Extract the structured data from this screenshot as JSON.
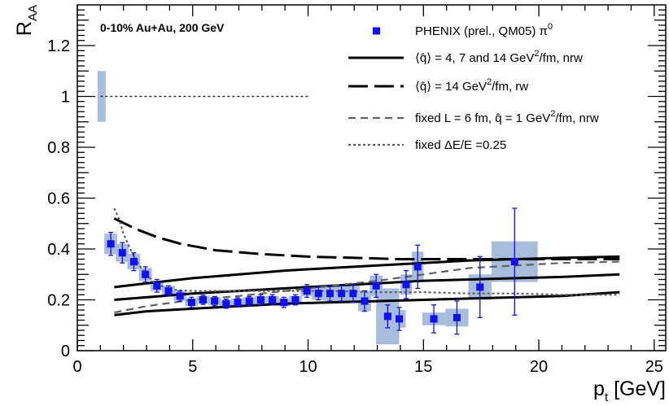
{
  "chart_data": {
    "type": "scatter",
    "annotation": "0-10% Au+Au, 200 GeV",
    "xlabel": "p",
    "xlabel_sub": "t",
    "xlabel_unit": " [GeV]",
    "ylabel": "R",
    "ylabel_sub": "AA",
    "xlim": [
      0,
      25.5
    ],
    "ylim": [
      0,
      1.36
    ],
    "x_ticks": [
      0,
      5,
      10,
      15,
      20,
      25
    ],
    "y_ticks": [
      0,
      0.2,
      0.4,
      0.6,
      0.8,
      1,
      1.2
    ],
    "y_tick_labels": [
      "0",
      "0.2",
      "0.4",
      "0.6",
      "0.8",
      "1",
      "1.2"
    ],
    "legend": {
      "position": "top-right",
      "entries": [
        {
          "text": "PHENIX (prel., QM05) π",
          "sup": "0",
          "style": "marker"
        },
        {
          "text": "⟨q̂⟩ = 4, 7 and 14 GeV",
          "sup": "2",
          "tail": "/fm, nrw",
          "style": "solid"
        },
        {
          "text": "⟨q̂⟩ = 14 GeV",
          "sup": "2",
          "tail": "/fm, rw",
          "style": "longdash"
        },
        {
          "text": "fixed L = 6 fm, q̂ = 1 GeV",
          "sup": "2",
          "tail": "/fm, nrw",
          "style": "dash"
        },
        {
          "text": "fixed ΔE/E =0.25",
          "sup": "",
          "tail": "",
          "style": "dot"
        }
      ]
    },
    "reference_line": {
      "y": 1.0,
      "x_range": [
        1.0,
        10.0
      ],
      "uncertainty_box": {
        "x": 1.05,
        "y_low": 0.9,
        "y_high": 1.1
      }
    },
    "data_points": [
      {
        "x": 1.45,
        "y": 0.42,
        "err": 0.045,
        "sys": 0.04
      },
      {
        "x": 1.95,
        "y": 0.385,
        "err": 0.04,
        "sys": 0.035
      },
      {
        "x": 2.45,
        "y": 0.35,
        "err": 0.035,
        "sys": 0.03
      },
      {
        "x": 2.95,
        "y": 0.3,
        "err": 0.03,
        "sys": 0.025
      },
      {
        "x": 3.45,
        "y": 0.255,
        "err": 0.025,
        "sys": 0.02
      },
      {
        "x": 3.95,
        "y": 0.235,
        "err": 0.02,
        "sys": 0.02
      },
      {
        "x": 4.45,
        "y": 0.215,
        "err": 0.02,
        "sys": 0.018
      },
      {
        "x": 4.95,
        "y": 0.19,
        "err": 0.02,
        "sys": 0.015
      },
      {
        "x": 5.45,
        "y": 0.2,
        "err": 0.018,
        "sys": 0.015
      },
      {
        "x": 5.95,
        "y": 0.195,
        "err": 0.018,
        "sys": 0.015
      },
      {
        "x": 6.45,
        "y": 0.185,
        "err": 0.018,
        "sys": 0.015
      },
      {
        "x": 6.95,
        "y": 0.19,
        "err": 0.018,
        "sys": 0.015
      },
      {
        "x": 7.45,
        "y": 0.195,
        "err": 0.018,
        "sys": 0.015
      },
      {
        "x": 7.95,
        "y": 0.2,
        "err": 0.02,
        "sys": 0.015
      },
      {
        "x": 8.45,
        "y": 0.2,
        "err": 0.02,
        "sys": 0.015
      },
      {
        "x": 8.95,
        "y": 0.19,
        "err": 0.02,
        "sys": 0.015
      },
      {
        "x": 9.45,
        "y": 0.2,
        "err": 0.02,
        "sys": 0.015
      },
      {
        "x": 9.95,
        "y": 0.235,
        "err": 0.025,
        "sys": 0.02
      },
      {
        "x": 10.45,
        "y": 0.225,
        "err": 0.025,
        "sys": 0.025
      },
      {
        "x": 10.95,
        "y": 0.225,
        "err": 0.03,
        "sys": 0.03
      },
      {
        "x": 11.45,
        "y": 0.225,
        "err": 0.03,
        "sys": 0.03
      },
      {
        "x": 11.95,
        "y": 0.225,
        "err": 0.035,
        "sys": 0.035
      },
      {
        "x": 12.45,
        "y": 0.195,
        "err": 0.04,
        "sys": 0.04
      },
      {
        "x": 12.95,
        "y": 0.255,
        "err": 0.045,
        "sys": 0.04
      },
      {
        "x": 13.45,
        "y": 0.135,
        "err": 0.045,
        "sys": 0.11
      },
      {
        "x": 13.95,
        "y": 0.125,
        "err": 0.045,
        "sys": 0.035
      },
      {
        "x": 14.25,
        "y": 0.26,
        "err": 0.055,
        "sys": 0.04
      },
      {
        "x": 14.75,
        "y": 0.33,
        "err": 0.085,
        "sys": 0.06
      },
      {
        "x": 15.45,
        "y": 0.125,
        "err": 0.055,
        "sys": 0.025
      },
      {
        "x": 16.45,
        "y": 0.13,
        "err": 0.065,
        "sys": 0.035
      },
      {
        "x": 17.45,
        "y": 0.25,
        "err": 0.12,
        "sys": 0.05
      },
      {
        "x": 18.95,
        "y": 0.35,
        "err": 0.21,
        "sys": 0.08
      }
    ],
    "systematic_box_half_width": [
      0.28,
      0.28,
      0.28,
      0.28,
      0.28,
      0.28,
      0.28,
      0.28,
      0.28,
      0.28,
      0.28,
      0.28,
      0.28,
      0.28,
      0.28,
      0.28,
      0.28,
      0.28,
      0.28,
      0.28,
      0.28,
      0.28,
      0.28,
      0.28,
      0.5,
      0.28,
      0.25,
      0.25,
      0.5,
      0.5,
      0.5,
      1.0
    ],
    "curves": [
      {
        "style": "solid",
        "x": [
          1.6,
          3,
          5,
          7,
          9,
          11,
          13,
          15,
          17,
          19,
          21,
          23.5
        ],
        "y": [
          0.25,
          0.265,
          0.285,
          0.3,
          0.315,
          0.325,
          0.335,
          0.345,
          0.355,
          0.36,
          0.365,
          0.37
        ]
      },
      {
        "style": "solid",
        "x": [
          1.6,
          3,
          5,
          7,
          9,
          11,
          13,
          15,
          17,
          19,
          21,
          23.5
        ],
        "y": [
          0.2,
          0.21,
          0.225,
          0.235,
          0.245,
          0.255,
          0.265,
          0.275,
          0.28,
          0.285,
          0.29,
          0.3
        ]
      },
      {
        "style": "solid",
        "x": [
          1.6,
          3,
          5,
          7,
          9,
          11,
          13,
          15,
          17,
          19,
          21,
          23.5
        ],
        "y": [
          0.14,
          0.155,
          0.165,
          0.175,
          0.185,
          0.19,
          0.195,
          0.2,
          0.205,
          0.21,
          0.215,
          0.23
        ]
      },
      {
        "style": "longdash",
        "x": [
          1.6,
          2.5,
          3.5,
          4.5,
          6,
          8,
          10,
          12,
          14,
          16,
          18,
          20,
          23.5
        ],
        "y": [
          0.52,
          0.48,
          0.445,
          0.42,
          0.395,
          0.38,
          0.37,
          0.365,
          0.36,
          0.36,
          0.36,
          0.36,
          0.36
        ]
      },
      {
        "style": "dash",
        "x": [
          1.6,
          3,
          5,
          7,
          9,
          11,
          13,
          15,
          17,
          19,
          21,
          23.5
        ],
        "y": [
          0.15,
          0.175,
          0.2,
          0.215,
          0.235,
          0.255,
          0.275,
          0.3,
          0.325,
          0.335,
          0.345,
          0.35
        ]
      },
      {
        "style": "dot",
        "x": [
          1.6,
          1.8,
          2.0,
          2.4,
          2.8,
          3.3,
          4,
          5,
          7,
          9,
          11,
          13,
          15,
          17,
          19,
          21,
          23.5
        ],
        "y": [
          0.56,
          0.52,
          0.46,
          0.38,
          0.32,
          0.27,
          0.24,
          0.235,
          0.235,
          0.235,
          0.235,
          0.23,
          0.23,
          0.225,
          0.225,
          0.22,
          0.22
        ]
      }
    ],
    "colors": {
      "marker": "#1010f0",
      "sys_box": "#a8bcdc",
      "axis": "#000000",
      "curve_solid": "#000000",
      "curve_dash": "#606060"
    }
  }
}
